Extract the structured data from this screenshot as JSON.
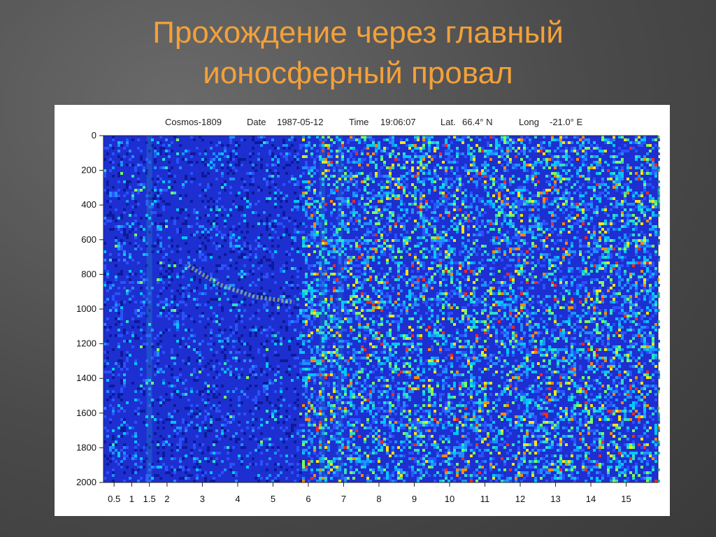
{
  "slide": {
    "title_line1": "Прохождение через главный",
    "title_line2": "ионосферный провал"
  },
  "chart_data": {
    "type": "heatmap",
    "header": {
      "satellite": "Cosmos-1809",
      "date_label": "Date",
      "date": "1987-05-12",
      "time_label": "Time",
      "time": "19:06:07",
      "lat_label": "Lat.",
      "lat": "66.4° N",
      "long_label": "Long",
      "long": "-21.0° E"
    },
    "y_ticks": [
      "0",
      "200",
      "400",
      "600",
      "800",
      "1000",
      "1200",
      "1400",
      "1600",
      "1800",
      "2000"
    ],
    "y_values": [
      0,
      200,
      400,
      600,
      800,
      1000,
      1200,
      1400,
      1600,
      1800,
      2000
    ],
    "ylim": [
      0,
      2000
    ],
    "x_ticks": [
      "0.5",
      "1",
      "1.5",
      "2",
      "3",
      "4",
      "5",
      "6",
      "7",
      "8",
      "9",
      "10",
      "11",
      "12",
      "13",
      "14",
      "15"
    ],
    "x_values": [
      0.5,
      1,
      1.5,
      2,
      3,
      4,
      5,
      6,
      7,
      8,
      9,
      10,
      11,
      12,
      13,
      14,
      15
    ],
    "xlim": [
      0.2,
      15.9
    ],
    "trace": {
      "x": [
        2.6,
        3.5,
        4.5,
        5.6
      ],
      "y": [
        750,
        860,
        930,
        960
      ]
    },
    "colors": {
      "background": "#1d2fd0",
      "dark": "#0d1a9a",
      "palette": [
        "#2a52ff",
        "#1e90ff",
        "#00c8ff",
        "#2fe0c0",
        "#7cff5a",
        "#ffe600",
        "#ff8a00",
        "#ff2a1a"
      ]
    }
  }
}
